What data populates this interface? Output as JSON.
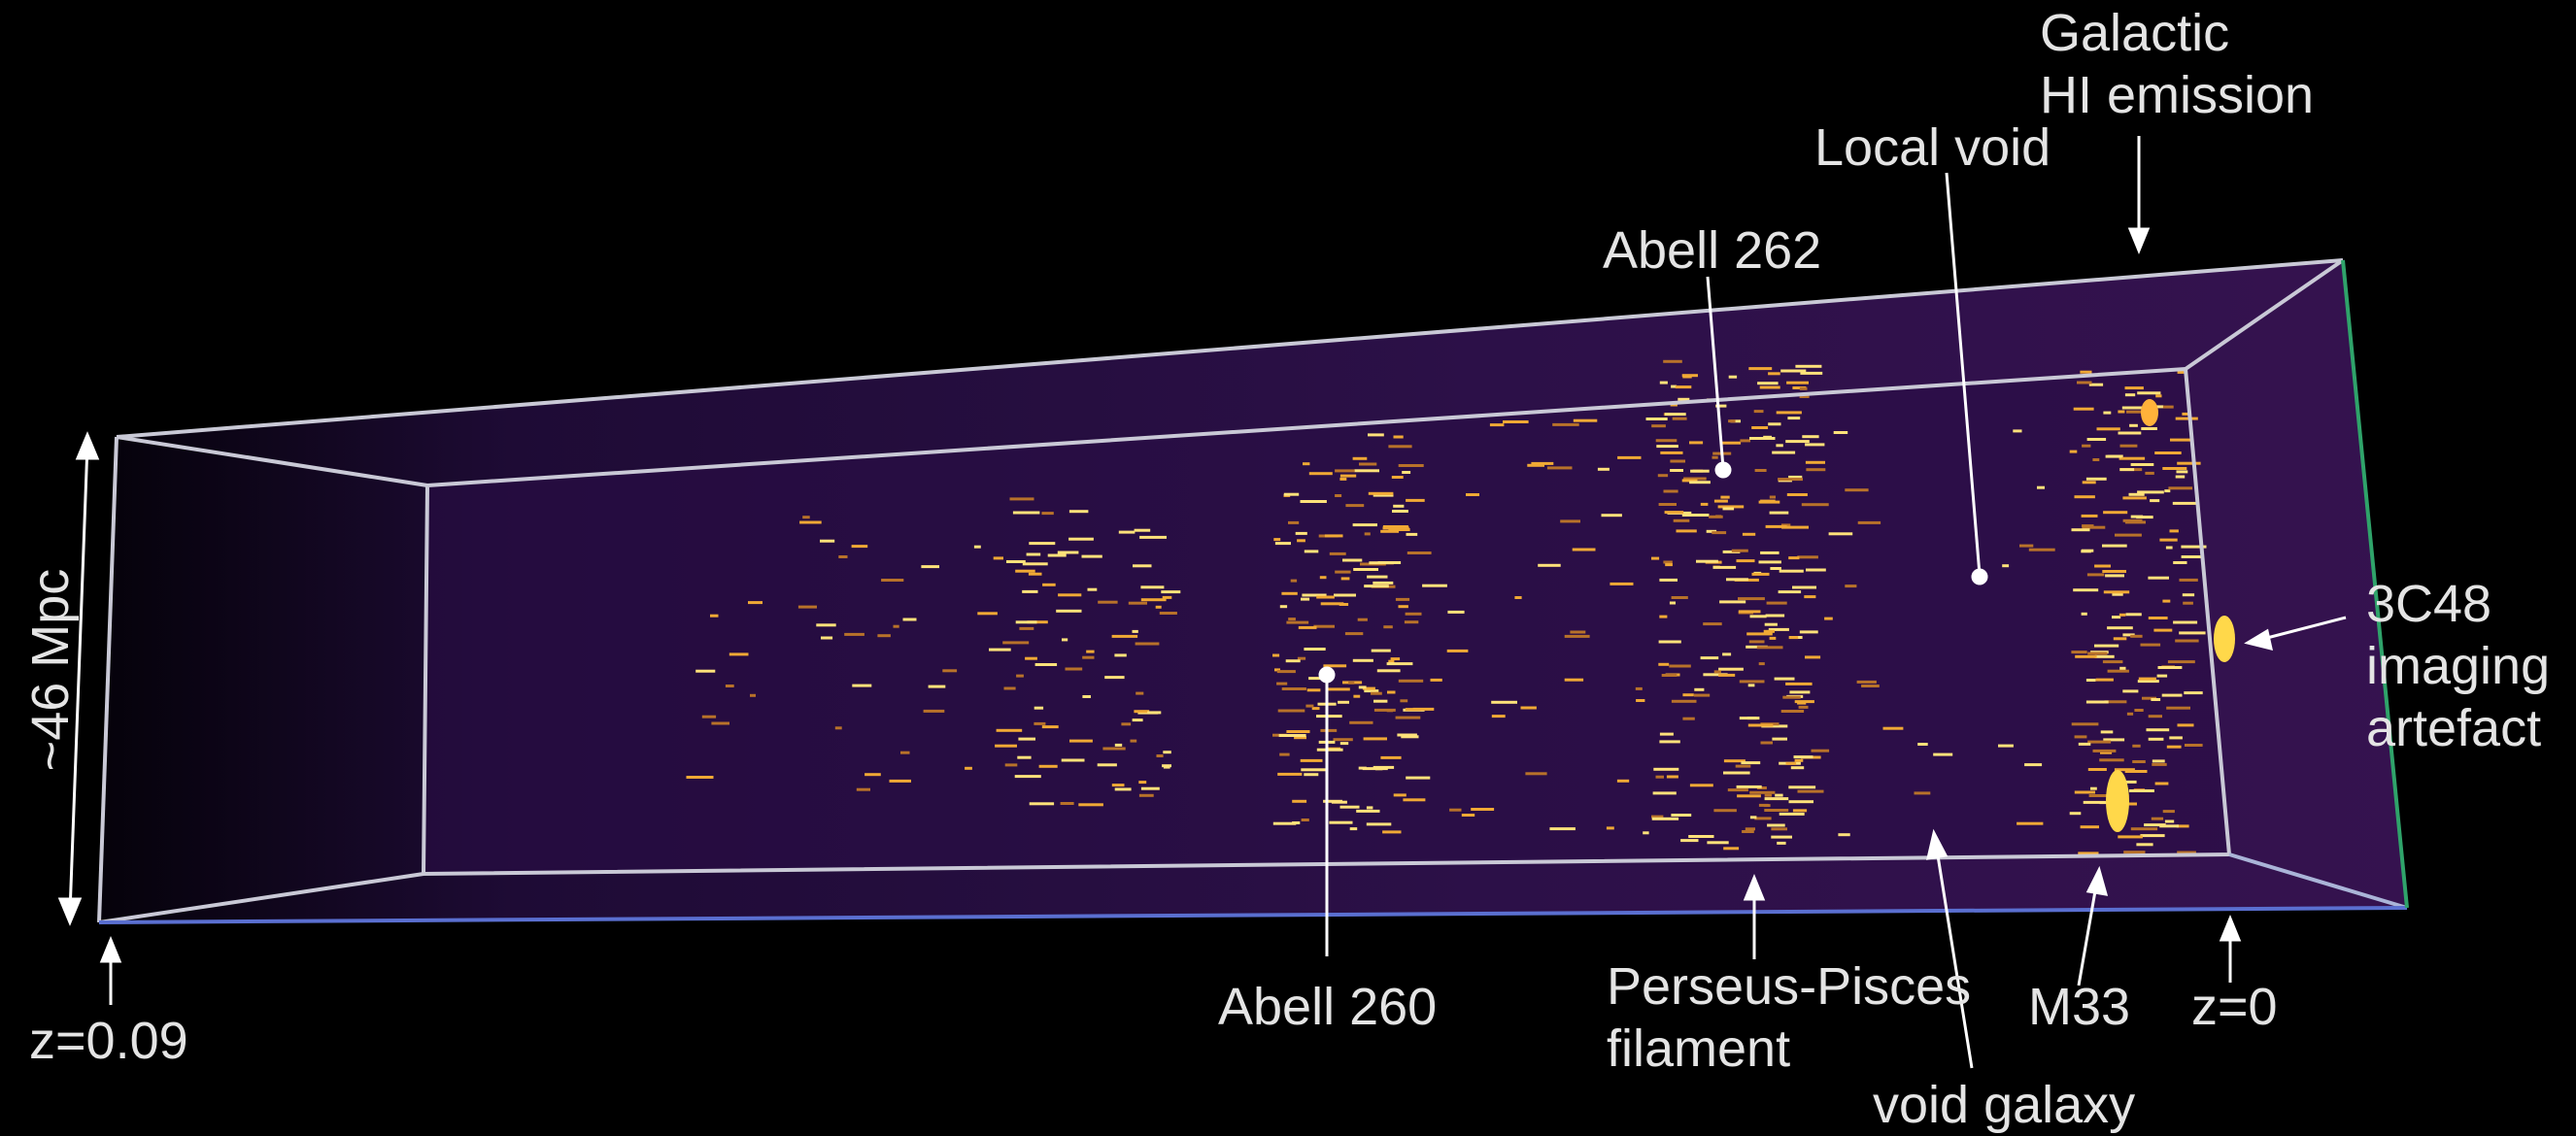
{
  "labels": {
    "galactic_hi": [
      "Galactic",
      "HI emission"
    ],
    "local_void": "Local void",
    "abell_262": "Abell 262",
    "scale": "~46 Mpc",
    "source_3c48": [
      "3C48",
      "imaging",
      "artefact"
    ],
    "abell_260": "Abell 260",
    "perseus_pisces": [
      "Perseus-Pisces",
      "filament"
    ],
    "m33": "M33",
    "z_near": "z=0",
    "z_far": "z=0.09",
    "void_galaxy": "void galaxy"
  },
  "colors": {
    "background": "#000000",
    "volume_fill": "#2a0f45",
    "box_edge": "#c8c8d8",
    "box_edge_right": "#2fa36a",
    "box_edge_bottom": "#5a6fd0",
    "emission": "#ffd24a",
    "annotation": "#ffffff"
  }
}
